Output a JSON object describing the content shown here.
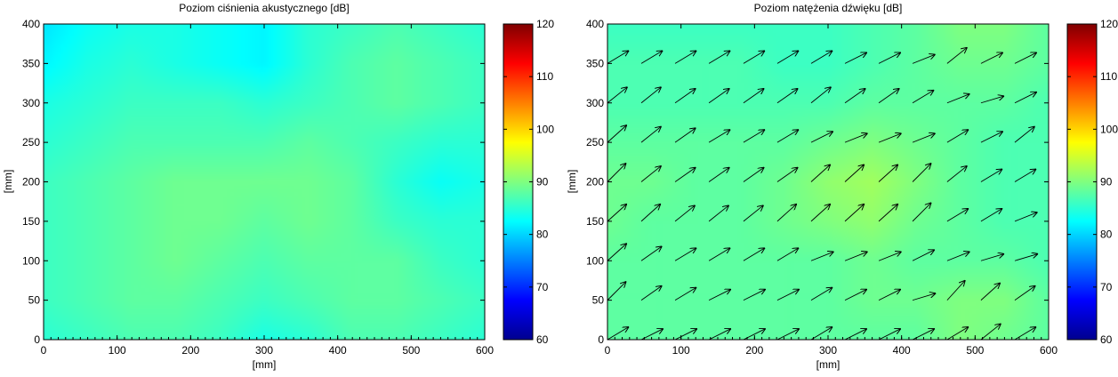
{
  "chart_data": [
    {
      "type": "heatmap",
      "title": "Poziom ciśnienia akustycznego [dB]",
      "xlabel": "[mm]",
      "ylabel": "[mm]",
      "xlim": [
        0,
        600
      ],
      "ylim": [
        0,
        400
      ],
      "x_ticks": [
        "0",
        "100",
        "200",
        "300",
        "400",
        "500",
        "600"
      ],
      "y_ticks": [
        "0",
        "50",
        "100",
        "150",
        "200",
        "250",
        "300",
        "350",
        "400"
      ],
      "colorbar": {
        "range": [
          60,
          120
        ],
        "ticks": [
          "60",
          "70",
          "80",
          "90",
          "100",
          "110",
          "120"
        ],
        "colormap": "jet"
      },
      "field": {
        "x": [
          0,
          60,
          120,
          180,
          240,
          300,
          360,
          420,
          480,
          540,
          600
        ],
        "y": [
          0,
          50,
          100,
          150,
          200,
          250,
          300,
          350,
          400
        ],
        "values": [
          [
            85,
            86,
            87,
            87,
            86,
            84,
            85,
            87,
            87,
            86,
            85
          ],
          [
            86,
            87,
            88,
            88,
            87,
            86,
            87,
            88,
            88,
            87,
            86
          ],
          [
            86,
            87,
            88,
            89,
            88,
            87,
            88,
            88,
            88,
            86,
            85
          ],
          [
            86,
            87,
            88,
            89,
            89,
            88,
            89,
            88,
            86,
            85,
            85
          ],
          [
            86,
            87,
            88,
            89,
            89,
            89,
            89,
            88,
            85,
            83,
            84
          ],
          [
            85,
            86,
            87,
            87,
            87,
            87,
            88,
            87,
            86,
            85,
            85
          ],
          [
            84,
            85,
            86,
            86,
            86,
            85,
            86,
            87,
            88,
            87,
            86
          ],
          [
            82,
            84,
            85,
            84,
            83,
            82,
            85,
            87,
            88,
            87,
            86
          ],
          [
            81,
            83,
            84,
            84,
            83,
            82,
            85,
            86,
            87,
            86,
            85
          ]
        ]
      }
    },
    {
      "type": "heatmap",
      "title": "Poziom natężenia dźwięku [dB]",
      "xlabel": "[mm]",
      "ylabel": "[mm]",
      "xlim": [
        0,
        600
      ],
      "ylim": [
        0,
        400
      ],
      "x_ticks": [
        "0",
        "100",
        "200",
        "300",
        "400",
        "500",
        "600"
      ],
      "y_ticks": [
        "0",
        "50",
        "100",
        "150",
        "200",
        "250",
        "300",
        "350",
        "400"
      ],
      "colorbar": {
        "range": [
          60,
          120
        ],
        "ticks": [
          "60",
          "70",
          "80",
          "90",
          "100",
          "110",
          "120"
        ],
        "colormap": "jet"
      },
      "field": {
        "x": [
          0,
          60,
          120,
          180,
          240,
          300,
          360,
          420,
          480,
          540,
          600
        ],
        "y": [
          0,
          50,
          100,
          150,
          200,
          250,
          300,
          350,
          400
        ],
        "values": [
          [
            88,
            88,
            88,
            88,
            88,
            88,
            88,
            88,
            90,
            89,
            88
          ],
          [
            88,
            88,
            88,
            88,
            88,
            88,
            89,
            89,
            90,
            90,
            88
          ],
          [
            88,
            88,
            88,
            88,
            88,
            88,
            89,
            88,
            88,
            88,
            87
          ],
          [
            89,
            88,
            88,
            88,
            89,
            90,
            91,
            89,
            88,
            87,
            87
          ],
          [
            89,
            89,
            88,
            88,
            89,
            91,
            92,
            90,
            88,
            87,
            87
          ],
          [
            88,
            88,
            88,
            88,
            88,
            89,
            90,
            89,
            88,
            87,
            87
          ],
          [
            87,
            87,
            87,
            87,
            87,
            87,
            88,
            88,
            88,
            88,
            87
          ],
          [
            87,
            87,
            87,
            87,
            86,
            86,
            87,
            88,
            89,
            89,
            88
          ],
          [
            86,
            86,
            86,
            86,
            86,
            86,
            87,
            88,
            90,
            90,
            88
          ]
        ]
      },
      "vectors": {
        "x": [
          0,
          46,
          92,
          138,
          185,
          231,
          277,
          323,
          369,
          415,
          462,
          508,
          554
        ],
        "y": [
          0,
          50,
          100,
          150,
          200,
          250,
          300,
          350
        ],
        "u": [
          [
            1,
            1,
            1,
            1,
            1,
            1,
            1,
            1,
            1,
            1,
            1,
            1,
            1
          ],
          [
            1,
            1,
            1,
            1,
            1,
            1,
            1,
            1,
            1,
            1,
            1,
            1,
            1
          ],
          [
            1,
            1,
            1,
            1,
            1,
            1,
            1,
            1,
            1,
            1,
            1,
            1,
            1
          ],
          [
            1,
            1,
            1,
            1,
            1,
            1,
            1,
            1,
            1,
            1,
            1,
            1,
            1
          ],
          [
            1,
            1,
            1,
            1,
            1,
            1,
            1,
            1,
            1,
            1,
            1,
            1,
            1
          ],
          [
            1,
            1,
            1,
            1,
            1,
            1,
            1,
            1,
            1,
            1,
            1,
            1,
            1
          ],
          [
            1,
            1,
            1,
            1,
            1,
            1,
            1,
            1,
            1,
            1,
            1,
            1,
            1
          ],
          [
            1,
            1,
            1,
            1,
            1,
            1,
            1,
            1,
            1,
            1,
            1,
            1,
            1
          ]
        ],
        "v": [
          [
            0.6,
            0.5,
            0.5,
            0.5,
            0.5,
            0.5,
            0.6,
            0.5,
            0.5,
            0.5,
            0.6,
            0.8,
            0.6
          ],
          [
            1.0,
            0.7,
            0.6,
            0.5,
            0.5,
            0.5,
            0.6,
            0.5,
            0.5,
            0.3,
            1.1,
            0.9,
            0.7
          ],
          [
            0.9,
            0.7,
            0.6,
            0.6,
            0.6,
            0.6,
            0.4,
            0.4,
            0.4,
            0.5,
            0.4,
            0.3,
            0.3
          ],
          [
            0.9,
            0.9,
            0.8,
            0.8,
            0.8,
            0.9,
            0.9,
            0.9,
            0.9,
            1.0,
            0.6,
            0.6,
            0.4
          ],
          [
            1.0,
            0.8,
            0.7,
            0.7,
            0.7,
            0.7,
            0.9,
            0.9,
            0.9,
            1.0,
            0.8,
            0.6,
            0.6
          ],
          [
            0.9,
            0.8,
            0.7,
            0.6,
            0.6,
            0.6,
            0.5,
            0.4,
            0.4,
            0.4,
            0.6,
            0.5,
            0.8
          ],
          [
            0.8,
            0.8,
            0.7,
            0.7,
            0.7,
            0.7,
            0.8,
            0.7,
            0.7,
            0.6,
            0.4,
            0.3,
            0.5
          ],
          [
            0.6,
            0.6,
            0.6,
            0.6,
            0.6,
            0.6,
            0.6,
            0.5,
            0.5,
            0.4,
            0.8,
            0.5,
            0.5
          ]
        ]
      }
    }
  ]
}
